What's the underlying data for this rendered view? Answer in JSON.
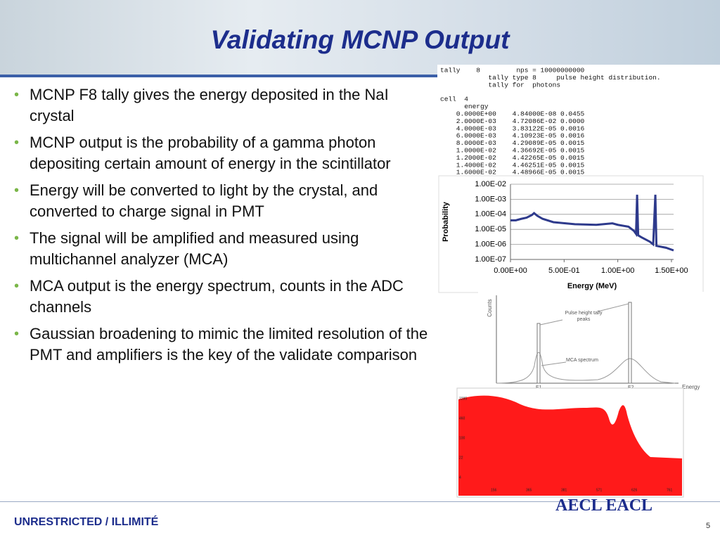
{
  "header": {
    "title": "Validating MCNP Output"
  },
  "bullets": [
    "MCNP F8 tally gives the energy deposited in the NaI crystal",
    "MCNP output is the probability of a gamma photon depositing certain amount of energy in the scintillator",
    "Energy will be converted to light by the crystal, and converted to charge signal in PMT",
    "The signal will be amplified and measured using multichannel analyzer (MCA)",
    "MCA output is the energy spectrum, counts in the ADC channels",
    "Gaussian broadening to mimic the limited resolution of the PMT and amplifiers is the key of the validate comparison"
  ],
  "tally_output": [
    "tally    8         nps = 10000000000",
    "            tally type 8     pulse height distribution.",
    "            tally for  photons",
    "cell  4",
    "      energy",
    "    0.0000E+00    4.84000E-08 0.0455",
    "    2.0000E-03    4.72086E-02 0.0000",
    "    4.0000E-03    3.83122E-05 0.0016",
    "    6.0000E-03    4.10923E-05 0.0016",
    "    8.0000E-03    4.29089E-05 0.0015",
    "    1.0000E-02    4.36692E-05 0.0015",
    "    1.2000E-02    4.42265E-05 0.0015",
    "    1.4000E-02    4.46251E-05 0.0015",
    "    1.6000E-02    4.48966E-05 0.0015"
  ],
  "chart_data": {
    "type": "line",
    "xlabel": "Energy (MeV)",
    "ylabel": "Probability",
    "color": "#2e3a8c",
    "log_y": true,
    "grid": true,
    "x": [
      0,
      0.05,
      0.1,
      0.15,
      0.2,
      0.22,
      0.25,
      0.3,
      0.4,
      0.6,
      0.8,
      0.95,
      1.0,
      1.1,
      1.15,
      1.17,
      1.18,
      1.19,
      1.22,
      1.3,
      1.33,
      1.35,
      1.36,
      1.45,
      1.52
    ],
    "values": [
      4e-05,
      4e-05,
      5e-05,
      6e-05,
      9e-05,
      0.00012,
      8e-05,
      5e-05,
      3e-05,
      2.2e-05,
      2e-05,
      2.5e-05,
      2e-05,
      1.5e-05,
      8e-06,
      5e-06,
      0.002,
      4e-06,
      3e-06,
      1.5e-06,
      1e-06,
      0.002,
      8e-07,
      6e-07,
      4e-07
    ],
    "xlim": [
      0,
      1.52
    ],
    "ylim": [
      1e-07,
      0.01
    ],
    "xticks": [
      {
        "value": 0,
        "label": "0.00E+00"
      },
      {
        "value": 0.5,
        "label": "5.00E-01"
      },
      {
        "value": 1.0,
        "label": "1.00E+00"
      },
      {
        "value": 1.5,
        "label": "1.50E+00"
      }
    ],
    "yticks": [
      {
        "value": 1e-07,
        "label": "1.00E-07"
      },
      {
        "value": 1e-06,
        "label": "1.00E-06"
      },
      {
        "value": 1e-05,
        "label": "1.00E-05"
      },
      {
        "value": 0.0001,
        "label": "1.00E-04"
      },
      {
        "value": 0.001,
        "label": "1.00E-03"
      },
      {
        "value": 0.01,
        "label": "1.00E-02"
      }
    ]
  },
  "schematic": {
    "y_label": "Counts",
    "x_label": "Energy",
    "peaks_label": "Pulse height tally peaks",
    "mca_label": "MCA spectrum",
    "e1": "E1",
    "e2": "E2"
  },
  "mca_image": {
    "y_labels": [
      "2285",
      "460",
      "100",
      "22",
      "4"
    ],
    "x_labels": [
      "156",
      "365",
      "381",
      "571",
      "626",
      "761"
    ]
  },
  "footer": {
    "classification": "UNRESTRICTED / ILLIMITÉ",
    "page": "5",
    "logo": "AECL EACL"
  }
}
